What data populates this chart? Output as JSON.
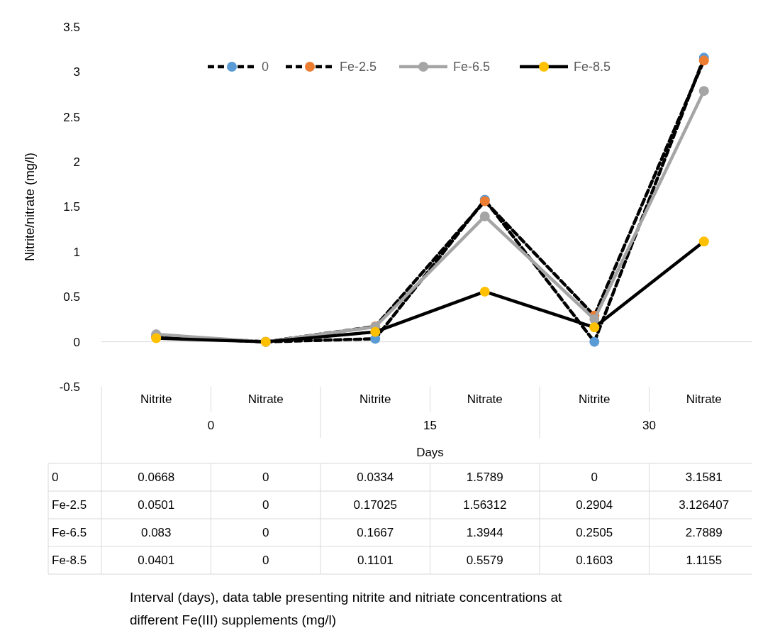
{
  "chart_data": {
    "type": "line",
    "ylabel": "Nitrite/nitrate (mg/l)",
    "xlabel": "Days",
    "categories": [
      "Nitrite",
      "Nitrate",
      "Nitrite",
      "Nitrate",
      "Nitrite",
      "Nitrate"
    ],
    "series": [
      {
        "name": "0",
        "color": "#5b9bd5",
        "line_style": "dashed",
        "values": [
          0.0668,
          0,
          0.0334,
          1.5789,
          0,
          3.1581
        ]
      },
      {
        "name": "Fe-2.5",
        "color": "#ed7d31",
        "line_style": "dashed",
        "values": [
          0.0501,
          0,
          0.17025,
          1.56312,
          0.2904,
          3.126407
        ]
      },
      {
        "name": "Fe-6.5",
        "color": "#a5a5a5",
        "line_style": "solid",
        "values": [
          0.083,
          0,
          0.1667,
          1.3944,
          0.2505,
          2.7889
        ]
      },
      {
        "name": "Fe-8.5",
        "color": "#ffc000",
        "line_style": "solid",
        "values": [
          0.0401,
          0,
          0.1101,
          0.5579,
          0.1603,
          1.1155
        ]
      }
    ],
    "ylim": [
      -0.5,
      3.5
    ],
    "yticks": [
      -0.5,
      0,
      0.5,
      1,
      1.5,
      2,
      2.5,
      3,
      3.5
    ],
    "legend": "top",
    "marker": "circle",
    "data_labels": true,
    "annotations": [
      "0",
      "15",
      "30",
      "Interval (days), data table presenting nitrite and nitriate concentrations at different Fe(III) supplements (mg/l)"
    ]
  }
}
